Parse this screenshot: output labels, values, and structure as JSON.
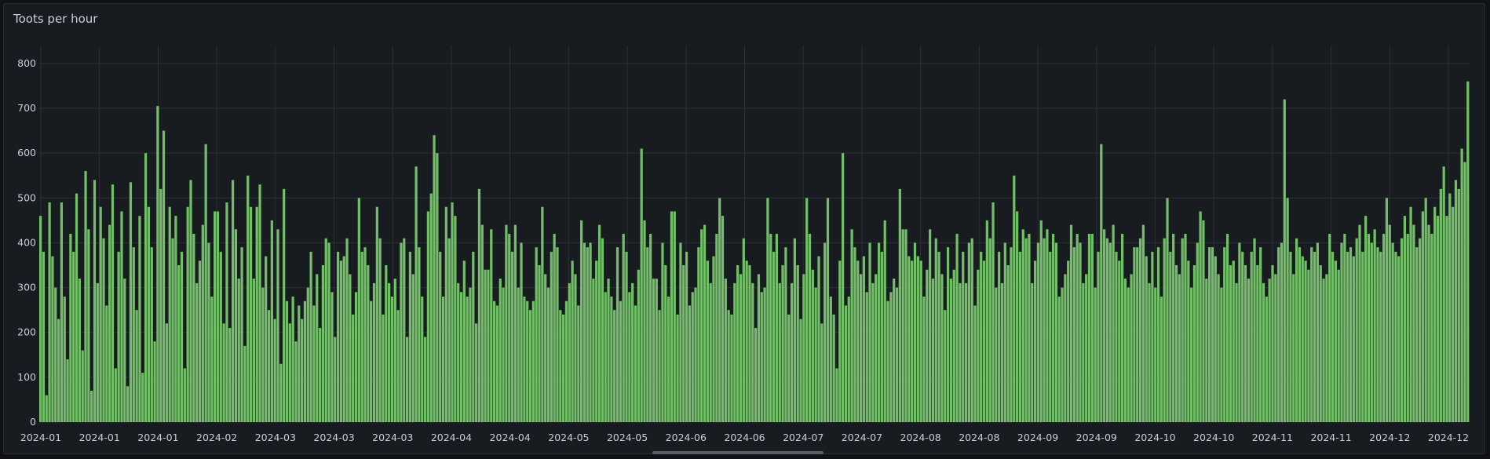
{
  "panel": {
    "title": "Toots per hour"
  },
  "colors": {
    "bar": "#73bf69",
    "grid": "#2c2f35",
    "text": "#ccccdc",
    "background": "#181b1f"
  },
  "chart_data": {
    "type": "bar",
    "title": "Toots per hour",
    "xlabel": "",
    "ylabel": "",
    "ylim": [
      0,
      840
    ],
    "yticks": [
      0,
      100,
      200,
      300,
      400,
      500,
      600,
      700,
      800
    ],
    "xticks": [
      "2024-01",
      "2024-01",
      "2024-01",
      "2024-02",
      "2024-03",
      "2024-03",
      "2024-03",
      "2024-04",
      "2024-04",
      "2024-05",
      "2024-05",
      "2024-06",
      "2024-06",
      "2024-07",
      "2024-07",
      "2024-08",
      "2024-08",
      "2024-09",
      "2024-09",
      "2024-10",
      "2024-10",
      "2024-11",
      "2024-11",
      "2024-12",
      "2024-12"
    ],
    "grid": true,
    "legend": "none",
    "series": [
      {
        "values": [
          460,
          380,
          60,
          490,
          370,
          300,
          230,
          490,
          280,
          140,
          420,
          380,
          510,
          320,
          160,
          560,
          430,
          70,
          540,
          310,
          480,
          410,
          260,
          440,
          530,
          120,
          380,
          470,
          320,
          80,
          535,
          390,
          250,
          460,
          110,
          600,
          480,
          390,
          180,
          705,
          520,
          650,
          220,
          480,
          410,
          460,
          350,
          380,
          120,
          480,
          540,
          420,
          310,
          360,
          440,
          620,
          400,
          280,
          470,
          470,
          380,
          220,
          490,
          210,
          540,
          430,
          320,
          390,
          170,
          550,
          480,
          320,
          480,
          530,
          300,
          370,
          250,
          450,
          230,
          430,
          130,
          520,
          270,
          220,
          280,
          180,
          260,
          230,
          270,
          300,
          380,
          260,
          330,
          210,
          350,
          410,
          400,
          290,
          190,
          380,
          360,
          370,
          410,
          330,
          240,
          290,
          500,
          380,
          390,
          350,
          270,
          310,
          480,
          410,
          240,
          350,
          310,
          280,
          320,
          250,
          400,
          410,
          190,
          380,
          330,
          570,
          390,
          280,
          190,
          470,
          510,
          640,
          600,
          380,
          280,
          480,
          410,
          490,
          460,
          310,
          290,
          360,
          280,
          300,
          380,
          220,
          520,
          440,
          340,
          340,
          430,
          270,
          260,
          320,
          300,
          440,
          420,
          380,
          440,
          300,
          400,
          280,
          270,
          250,
          270,
          390,
          350,
          480,
          330,
          300,
          380,
          420,
          390,
          250,
          240,
          270,
          310,
          360,
          330,
          260,
          450,
          400,
          390,
          400,
          320,
          360,
          440,
          410,
          290,
          320,
          280,
          250,
          390,
          270,
          420,
          380,
          290,
          310,
          260,
          340,
          610,
          450,
          390,
          420,
          320,
          320,
          250,
          400,
          350,
          280,
          470,
          470,
          240,
          400,
          350,
          380,
          260,
          290,
          300,
          390,
          430,
          440,
          360,
          310,
          370,
          420,
          500,
          460,
          320,
          250,
          240,
          310,
          350,
          330,
          410,
          360,
          350,
          310,
          210,
          330,
          290,
          300,
          500,
          420,
          380,
          420,
          310,
          350,
          390,
          240,
          310,
          410,
          350,
          230,
          330,
          500,
          420,
          340,
          300,
          370,
          220,
          400,
          500,
          280,
          240,
          120,
          360,
          600,
          260,
          280,
          430,
          390,
          360,
          330,
          370,
          290,
          400,
          310,
          330,
          400,
          380,
          450,
          270,
          290,
          320,
          300,
          520,
          430,
          430,
          370,
          360,
          400,
          370,
          360,
          280,
          340,
          430,
          320,
          410,
          380,
          330,
          250,
          390,
          320,
          340,
          420,
          310,
          380,
          310,
          400,
          410,
          260,
          340,
          380,
          360,
          450,
          410,
          490,
          300,
          380,
          310,
          400,
          350,
          390,
          550,
          470,
          380,
          430,
          410,
          420,
          310,
          360,
          400,
          450,
          410,
          430,
          380,
          420,
          400,
          280,
          300,
          330,
          360,
          440,
          390,
          420,
          400,
          310,
          330,
          420,
          420,
          300,
          380,
          620,
          430,
          410,
          400,
          440,
          380,
          360,
          420,
          320,
          300,
          330,
          390,
          390,
          410,
          440,
          370,
          310,
          380,
          300,
          390,
          280,
          410,
          500,
          380,
          420,
          350,
          330,
          410,
          420,
          360,
          300,
          350,
          400,
          470,
          450,
          320,
          390,
          390,
          370,
          330,
          300,
          390,
          420,
          350,
          360,
          310,
          400,
          380,
          350,
          320,
          380,
          410,
          350,
          390,
          310,
          280,
          320,
          350,
          330,
          390,
          400,
          720,
          500,
          380,
          330,
          410,
          390,
          370,
          360,
          340,
          390,
          380,
          400,
          350,
          320,
          330,
          420,
          380,
          360,
          340,
          400,
          420,
          380,
          390,
          370,
          410,
          440,
          380,
          460,
          420,
          400,
          430,
          390,
          380,
          420,
          500,
          440,
          400,
          380,
          370,
          410,
          460,
          420,
          480,
          440,
          390,
          410,
          470,
          500,
          440,
          420,
          480,
          460,
          520,
          570,
          460,
          510,
          480,
          540,
          520,
          610,
          580,
          760
        ]
      }
    ]
  }
}
